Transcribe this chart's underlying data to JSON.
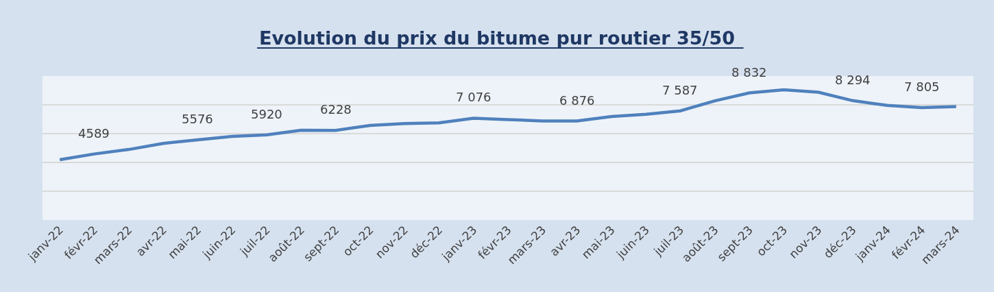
{
  "chart_data": {
    "type": "line",
    "title": "Evolution du prix du bitume pur routier 35/50",
    "categories": [
      "janv-22",
      "févr-22",
      "mars-22",
      "avr-22",
      "mai-22",
      "juin-22",
      "juil-22",
      "août-22",
      "sept-22",
      "oct-22",
      "nov-22",
      "déc-22",
      "janv-23",
      "févr-23",
      "mars-23",
      "avr-23",
      "mai-23",
      "juin-23",
      "juil-23",
      "août-23",
      "sept-23",
      "oct-23",
      "nov-23",
      "déc-23",
      "janv-24",
      "févr-24",
      "mars-24"
    ],
    "series": [
      {
        "color": "#4f81bd",
        "values": [
          4195,
          4589,
          4900,
          5324,
          5576,
          5810,
          5920,
          6238,
          6228,
          6576,
          6705,
          6748,
          7076,
          6981,
          6880,
          6876,
          7195,
          7343,
          7587,
          8281,
          8832,
          9048,
          8876,
          8294,
          7962,
          7805,
          7876
        ],
        "value_labels": [
          null,
          "4589",
          null,
          null,
          "5576",
          null,
          "5920",
          null,
          "6228",
          null,
          null,
          null,
          "7 076",
          null,
          null,
          "6 876",
          null,
          null,
          "7 587",
          null,
          "8 832",
          null,
          null,
          "8 294",
          null,
          "7 805",
          null
        ]
      }
    ],
    "ylim": [
      0,
      10000
    ],
    "yticks": [
      {
        "value": 0,
        "label": null
      },
      {
        "value": 2000,
        "label": null
      },
      {
        "value": 4000,
        "label": null
      },
      {
        "value": 6000,
        "label": null
      },
      {
        "value": 8000,
        "label": null
      },
      {
        "value": 10000,
        "label": null
      }
    ],
    "tick_labels": "x",
    "grid": "y",
    "marker": "none",
    "line_style": "solid"
  }
}
